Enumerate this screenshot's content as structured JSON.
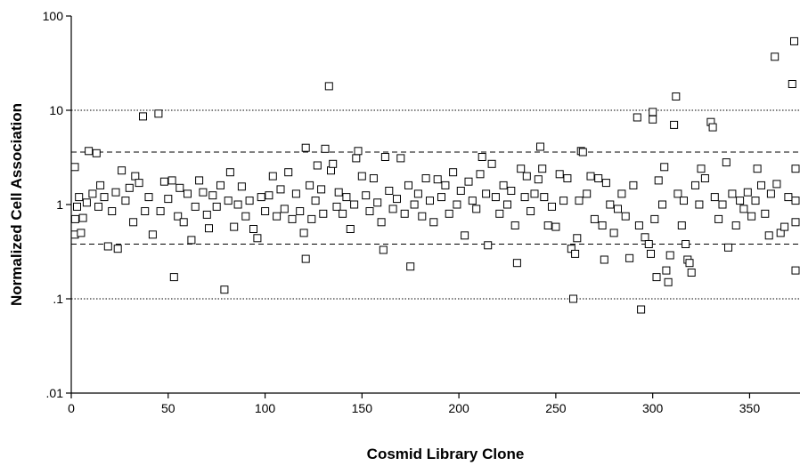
{
  "chart_data": {
    "type": "scatter",
    "title": "",
    "xlabel": "Cosmid Library Clone",
    "ylabel": "Normalized Cell Association",
    "xlim": [
      0,
      376
    ],
    "ylim": [
      0.01,
      100
    ],
    "yscale": "log",
    "x_ticks": [
      "0",
      "50",
      "100",
      "150",
      "200",
      "250",
      "300",
      "350"
    ],
    "y_ticks": [
      "100",
      "10",
      "1",
      ".1",
      ".01"
    ],
    "grid": false,
    "reference_lines": [
      {
        "y": 10,
        "style": "dotted"
      },
      {
        "y": 3.6,
        "style": "dashed"
      },
      {
        "y": 0.38,
        "style": "dashed"
      },
      {
        "y": 0.1,
        "style": "dotted"
      }
    ],
    "marker": "open-square",
    "series": [
      {
        "points": [
          [
            0,
            2.5
          ],
          [
            1,
            0.48
          ],
          [
            2,
            0.7
          ],
          [
            3,
            0.95
          ],
          [
            4,
            1.2
          ],
          [
            5,
            0.5
          ],
          [
            6,
            0.72
          ],
          [
            8,
            1.05
          ],
          [
            9,
            3.7
          ],
          [
            11,
            1.3
          ],
          [
            13,
            3.5
          ],
          [
            14,
            0.95
          ],
          [
            15,
            1.6
          ],
          [
            17,
            1.2
          ],
          [
            19,
            0.36
          ],
          [
            21,
            0.85
          ],
          [
            23,
            1.35
          ],
          [
            24,
            0.34
          ],
          [
            26,
            2.3
          ],
          [
            28,
            1.1
          ],
          [
            30,
            1.5
          ],
          [
            32,
            0.65
          ],
          [
            33,
            2.0
          ],
          [
            35,
            1.7
          ],
          [
            37,
            8.6
          ],
          [
            38,
            0.85
          ],
          [
            40,
            1.2
          ],
          [
            42,
            0.48
          ],
          [
            45,
            9.2
          ],
          [
            46,
            0.85
          ],
          [
            48,
            1.75
          ],
          [
            50,
            1.15
          ],
          [
            52,
            1.8
          ],
          [
            53,
            0.17
          ],
          [
            55,
            0.75
          ],
          [
            56,
            1.5
          ],
          [
            58,
            0.65
          ],
          [
            60,
            1.3
          ],
          [
            62,
            0.42
          ],
          [
            64,
            0.95
          ],
          [
            66,
            1.8
          ],
          [
            68,
            1.35
          ],
          [
            70,
            0.78
          ],
          [
            71,
            0.56
          ],
          [
            73,
            1.25
          ],
          [
            75,
            0.95
          ],
          [
            77,
            1.6
          ],
          [
            79,
            0.125
          ],
          [
            81,
            1.1
          ],
          [
            82,
            2.2
          ],
          [
            84,
            0.58
          ],
          [
            86,
            1.0
          ],
          [
            88,
            1.55
          ],
          [
            90,
            0.75
          ],
          [
            92,
            1.1
          ],
          [
            94,
            0.55
          ],
          [
            96,
            0.44
          ],
          [
            98,
            1.2
          ],
          [
            100,
            0.85
          ],
          [
            102,
            1.25
          ],
          [
            104,
            2.0
          ],
          [
            106,
            0.75
          ],
          [
            108,
            1.45
          ],
          [
            110,
            0.9
          ],
          [
            112,
            2.2
          ],
          [
            114,
            0.7
          ],
          [
            116,
            1.3
          ],
          [
            118,
            0.85
          ],
          [
            120,
            0.5
          ],
          [
            121,
            4.0
          ],
          [
            121,
            0.265
          ],
          [
            123,
            1.6
          ],
          [
            124,
            0.7
          ],
          [
            126,
            1.1
          ],
          [
            127,
            2.6
          ],
          [
            129,
            1.45
          ],
          [
            130,
            0.8
          ],
          [
            131,
            3.9
          ],
          [
            133,
            18.0
          ],
          [
            134,
            2.3
          ],
          [
            135,
            2.7
          ],
          [
            137,
            0.95
          ],
          [
            138,
            1.35
          ],
          [
            140,
            0.8
          ],
          [
            142,
            1.2
          ],
          [
            144,
            0.55
          ],
          [
            146,
            1.0
          ],
          [
            147,
            3.1
          ],
          [
            148,
            3.7
          ],
          [
            150,
            2.0
          ],
          [
            152,
            1.25
          ],
          [
            154,
            0.85
          ],
          [
            156,
            1.9
          ],
          [
            158,
            1.05
          ],
          [
            160,
            0.65
          ],
          [
            161,
            0.33
          ],
          [
            162,
            3.2
          ],
          [
            164,
            1.4
          ],
          [
            166,
            0.9
          ],
          [
            168,
            1.15
          ],
          [
            170,
            3.1
          ],
          [
            172,
            0.8
          ],
          [
            174,
            1.6
          ],
          [
            175,
            0.22
          ],
          [
            177,
            1.0
          ],
          [
            179,
            1.3
          ],
          [
            181,
            0.75
          ],
          [
            183,
            1.9
          ],
          [
            185,
            1.1
          ],
          [
            187,
            0.65
          ],
          [
            189,
            1.85
          ],
          [
            191,
            1.2
          ],
          [
            193,
            1.6
          ],
          [
            195,
            0.8
          ],
          [
            197,
            2.2
          ],
          [
            199,
            1.0
          ],
          [
            201,
            1.4
          ],
          [
            203,
            0.47
          ],
          [
            205,
            1.75
          ],
          [
            207,
            1.1
          ],
          [
            209,
            0.9
          ],
          [
            211,
            2.1
          ],
          [
            212,
            3.2
          ],
          [
            214,
            1.3
          ],
          [
            215,
            0.37
          ],
          [
            217,
            2.7
          ],
          [
            219,
            1.2
          ],
          [
            221,
            0.8
          ],
          [
            223,
            1.6
          ],
          [
            225,
            1.0
          ],
          [
            227,
            1.4
          ],
          [
            229,
            0.6
          ],
          [
            230,
            0.24
          ],
          [
            232,
            2.4
          ],
          [
            234,
            1.2
          ],
          [
            235,
            2.0
          ],
          [
            237,
            0.85
          ],
          [
            239,
            1.3
          ],
          [
            241,
            1.85
          ],
          [
            242,
            4.1
          ],
          [
            243,
            2.4
          ],
          [
            244,
            1.2
          ],
          [
            246,
            0.6
          ],
          [
            248,
            0.95
          ],
          [
            250,
            0.58
          ],
          [
            252,
            2.1
          ],
          [
            254,
            1.1
          ],
          [
            256,
            1.9
          ],
          [
            258,
            0.34
          ],
          [
            259,
            0.1
          ],
          [
            260,
            0.3
          ],
          [
            261,
            0.44
          ],
          [
            262,
            1.1
          ],
          [
            263,
            3.7
          ],
          [
            264,
            3.6
          ],
          [
            266,
            1.3
          ],
          [
            268,
            2.0
          ],
          [
            270,
            0.7
          ],
          [
            272,
            1.9
          ],
          [
            274,
            0.6
          ],
          [
            275,
            0.26
          ],
          [
            276,
            1.7
          ],
          [
            278,
            1.0
          ],
          [
            280,
            0.5
          ],
          [
            282,
            0.9
          ],
          [
            284,
            1.3
          ],
          [
            286,
            0.75
          ],
          [
            288,
            0.27
          ],
          [
            290,
            1.6
          ],
          [
            292,
            8.4
          ],
          [
            293,
            0.6
          ],
          [
            294,
            0.077
          ],
          [
            296,
            0.45
          ],
          [
            298,
            0.38
          ],
          [
            299,
            0.3
          ],
          [
            300,
            8.0
          ],
          [
            300,
            9.6
          ],
          [
            301,
            0.7
          ],
          [
            302,
            0.17
          ],
          [
            303,
            1.8
          ],
          [
            305,
            1.0
          ],
          [
            306,
            2.5
          ],
          [
            307,
            0.2
          ],
          [
            308,
            0.15
          ],
          [
            309,
            0.29
          ],
          [
            311,
            7.0
          ],
          [
            312,
            14.0
          ],
          [
            313,
            1.3
          ],
          [
            315,
            0.6
          ],
          [
            316,
            1.1
          ],
          [
            317,
            0.38
          ],
          [
            318,
            0.26
          ],
          [
            319,
            0.24
          ],
          [
            320,
            0.19
          ],
          [
            322,
            1.6
          ],
          [
            324,
            1.0
          ],
          [
            325,
            2.4
          ],
          [
            327,
            1.9
          ],
          [
            330,
            7.5
          ],
          [
            331,
            6.6
          ],
          [
            332,
            1.2
          ],
          [
            334,
            0.7
          ],
          [
            336,
            1.0
          ],
          [
            338,
            2.8
          ],
          [
            339,
            0.35
          ],
          [
            341,
            1.3
          ],
          [
            343,
            0.6
          ],
          [
            345,
            1.1
          ],
          [
            347,
            0.9
          ],
          [
            349,
            1.35
          ],
          [
            351,
            0.75
          ],
          [
            353,
            1.1
          ],
          [
            354,
            2.4
          ],
          [
            356,
            1.6
          ],
          [
            358,
            0.8
          ],
          [
            360,
            0.47
          ],
          [
            361,
            1.3
          ],
          [
            363,
            37.0
          ],
          [
            364,
            1.65
          ],
          [
            366,
            0.5
          ],
          [
            368,
            0.58
          ],
          [
            370,
            1.2
          ],
          [
            372,
            19.0
          ],
          [
            373,
            54.0
          ],
          [
            374,
            2.4
          ],
          [
            375,
            0.65
          ],
          [
            376,
            0.2
          ],
          [
            376,
            1.1
          ]
        ]
      }
    ]
  }
}
